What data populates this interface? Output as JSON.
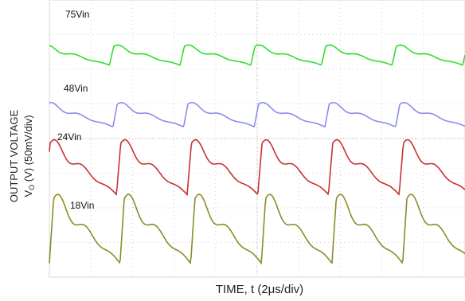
{
  "chart_data": {
    "type": "line",
    "xlabel": "TIME, t (2μs/div)",
    "ylabel_line1": "OUTPUT VOLTAGE",
    "ylabel_line2_prefix": "V",
    "ylabel_line2_sub": "O",
    "ylabel_line2_rest": " (V) (50mV/div)",
    "x_divisions": 10,
    "y_divisions": 8,
    "grid": true,
    "series": [
      {
        "name": "75Vin",
        "color": "#2ee02e",
        "period_div": 1.7,
        "amplitude_mV": 45
      },
      {
        "name": "48Vin",
        "color": "#8c8cf0",
        "period_div": 1.7,
        "amplitude_mV": 50
      },
      {
        "name": "24Vin",
        "color": "#c83232",
        "period_div": 1.7,
        "amplitude_mV": 75
      },
      {
        "name": "18Vin",
        "color": "#8c8c28",
        "period_div": 1.7,
        "amplitude_mV": 85
      }
    ]
  }
}
